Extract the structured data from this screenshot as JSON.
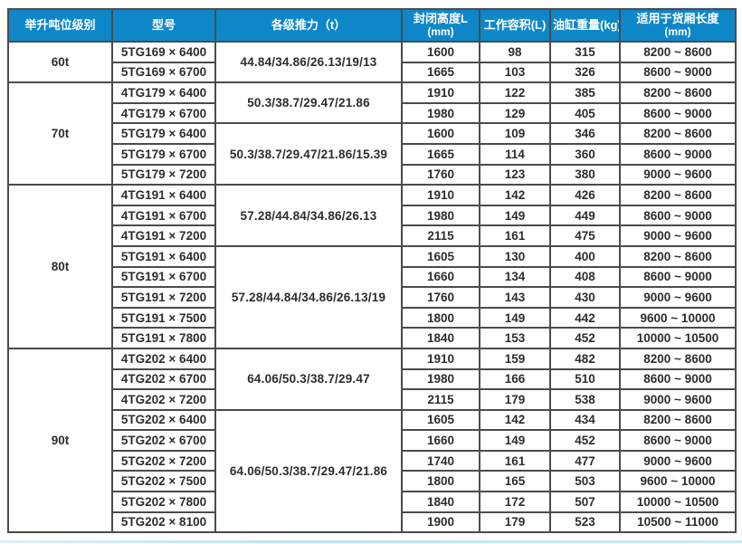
{
  "page": {
    "colors": {
      "header_blue": "#0e87c9",
      "row_blue": "#a8d7f1",
      "border": "#4b4b4e",
      "text": "#2d2d30"
    }
  },
  "table": {
    "headers": [
      {
        "label": "举升吨位级别",
        "sub": ""
      },
      {
        "label": "型号",
        "sub": ""
      },
      {
        "label": "各级推力（t）",
        "sub": ""
      },
      {
        "label": "封闭高度L",
        "sub": "(mm)"
      },
      {
        "label": "工作容积(L)",
        "sub": ""
      },
      {
        "label": "油缸重量(kg)",
        "sub": ""
      },
      {
        "label": "适用于货厢长度",
        "sub": "(mm)"
      }
    ],
    "groups": [
      {
        "tonnage": "60t",
        "blocks": [
          {
            "thrust": "44.84/34.86/26.13/19/13",
            "thrust_shaded": false,
            "rows": [
              {
                "model": "5TG169 × 6400",
                "closed_height": "1600",
                "work_volume": "98",
                "cyl_weight": "315",
                "box_length": "8200 ~ 8600",
                "shaded": false
              },
              {
                "model": "5TG169 × 6700",
                "closed_height": "1665",
                "work_volume": "103",
                "cyl_weight": "326",
                "box_length": "8600 ~ 9000",
                "shaded": true
              }
            ]
          }
        ]
      },
      {
        "tonnage": "70t",
        "blocks": [
          {
            "thrust": "50.3/38.7/29.47/21.86",
            "thrust_shaded": false,
            "rows": [
              {
                "model": "4TG179 × 6400",
                "closed_height": "1910",
                "work_volume": "122",
                "cyl_weight": "385",
                "box_length": "8200 ~ 8600",
                "shaded": false
              },
              {
                "model": "4TG179 × 6700",
                "closed_height": "1980",
                "work_volume": "129",
                "cyl_weight": "405",
                "box_length": "8600 ~ 9000",
                "shaded": true
              }
            ]
          },
          {
            "thrust": "50.3/38.7/29.47/21.86/15.39",
            "thrust_shaded": false,
            "rows": [
              {
                "model": "5TG179 × 6400",
                "closed_height": "1600",
                "work_volume": "109",
                "cyl_weight": "346",
                "box_length": "8200 ~ 8600",
                "shaded": false
              },
              {
                "model": "5TG179 × 6700",
                "closed_height": "1665",
                "work_volume": "114",
                "cyl_weight": "360",
                "box_length": "8600 ~ 9000",
                "shaded": true
              },
              {
                "model": "5TG179 × 7200",
                "closed_height": "1760",
                "work_volume": "123",
                "cyl_weight": "380",
                "box_length": "9000 ~ 9600",
                "shaded": false
              }
            ]
          }
        ]
      },
      {
        "tonnage": "80t",
        "blocks": [
          {
            "thrust": "57.28/44.84/34.86/26.13",
            "thrust_shaded": true,
            "rows": [
              {
                "model": "4TG191 × 6400",
                "closed_height": "1910",
                "work_volume": "142",
                "cyl_weight": "426",
                "box_length": "8200 ~ 8600",
                "shaded": true
              },
              {
                "model": "4TG191 × 6700",
                "closed_height": "1980",
                "work_volume": "149",
                "cyl_weight": "449",
                "box_length": "8600 ~ 9000",
                "shaded": false
              },
              {
                "model": "4TG191 × 7200",
                "closed_height": "2115",
                "work_volume": "161",
                "cyl_weight": "475",
                "box_length": "9000 ~ 9600",
                "shaded": true
              }
            ]
          },
          {
            "thrust": "57.28/44.84/34.86/26.13/19",
            "thrust_shaded": false,
            "rows": [
              {
                "model": "5TG191 × 6400",
                "closed_height": "1605",
                "work_volume": "130",
                "cyl_weight": "400",
                "box_length": "8200 ~ 8600",
                "shaded": false
              },
              {
                "model": "5TG191 × 6700",
                "closed_height": "1660",
                "work_volume": "134",
                "cyl_weight": "408",
                "box_length": "8600 ~ 9000",
                "shaded": true
              },
              {
                "model": "5TG191 × 7200",
                "closed_height": "1760",
                "work_volume": "143",
                "cyl_weight": "430",
                "box_length": "9000 ~ 9600",
                "shaded": false
              },
              {
                "model": "5TG191 × 7500",
                "closed_height": "1800",
                "work_volume": "149",
                "cyl_weight": "442",
                "box_length": "9600 ~ 10000",
                "shaded": true
              },
              {
                "model": "5TG191 × 7800",
                "closed_height": "1840",
                "work_volume": "153",
                "cyl_weight": "452",
                "box_length": "10000 ~ 10500",
                "shaded": false
              }
            ]
          }
        ]
      },
      {
        "tonnage": "90t",
        "blocks": [
          {
            "thrust": "64.06/50.3/38.7/29.47",
            "thrust_shaded": true,
            "rows": [
              {
                "model": "4TG202 × 6400",
                "closed_height": "1910",
                "work_volume": "159",
                "cyl_weight": "482",
                "box_length": "8200 ~ 8600",
                "shaded": true
              },
              {
                "model": "4TG202 × 6700",
                "closed_height": "1980",
                "work_volume": "166",
                "cyl_weight": "510",
                "box_length": "8600 ~ 9000",
                "shaded": false
              },
              {
                "model": "4TG202 × 7200",
                "closed_height": "2115",
                "work_volume": "179",
                "cyl_weight": "538",
                "box_length": "9000 ~ 9600",
                "shaded": true
              }
            ]
          },
          {
            "thrust": "64.06/50.3/38.7/29.47/21.86",
            "thrust_shaded": false,
            "rows": [
              {
                "model": "5TG202 × 6400",
                "closed_height": "1605",
                "work_volume": "142",
                "cyl_weight": "434",
                "box_length": "8200 ~ 8600",
                "shaded": false
              },
              {
                "model": "5TG202 × 6700",
                "closed_height": "1660",
                "work_volume": "149",
                "cyl_weight": "452",
                "box_length": "8600 ~ 9000",
                "shaded": true
              },
              {
                "model": "5TG202 × 7200",
                "closed_height": "1740",
                "work_volume": "161",
                "cyl_weight": "477",
                "box_length": "9000 ~ 9600",
                "shaded": false
              },
              {
                "model": "5TG202 × 7500",
                "closed_height": "1800",
                "work_volume": "165",
                "cyl_weight": "503",
                "box_length": "9600 ~ 10000",
                "shaded": true
              },
              {
                "model": "5TG202 × 7800",
                "closed_height": "1840",
                "work_volume": "172",
                "cyl_weight": "507",
                "box_length": "10000 ~ 10500",
                "shaded": false
              },
              {
                "model": "5TG202 × 8100",
                "closed_height": "1900",
                "work_volume": "179",
                "cyl_weight": "523",
                "box_length": "10500 ~ 11000",
                "shaded": false
              }
            ]
          }
        ]
      }
    ]
  }
}
